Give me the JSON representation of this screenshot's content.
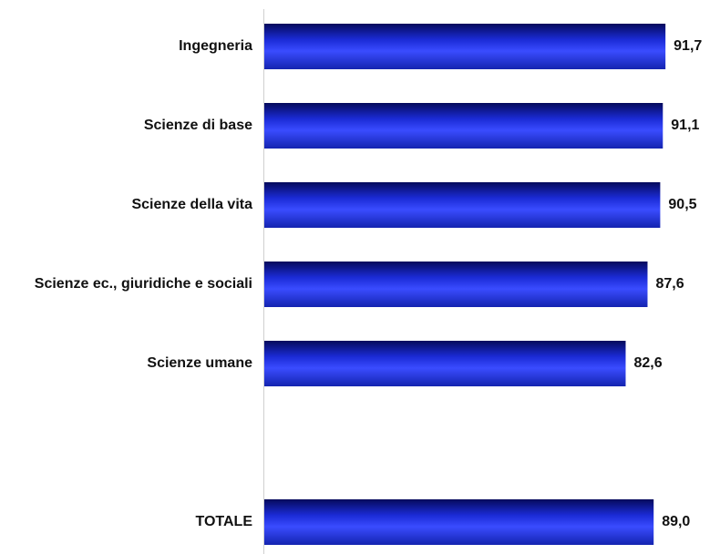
{
  "chart_data": {
    "type": "bar",
    "orientation": "horizontal",
    "categories": [
      "Ingegneria",
      "Scienze di base",
      "Scienze della vita",
      "Scienze ec., giuridiche e sociali",
      "Scienze umane",
      "",
      "TOTALE"
    ],
    "values": [
      91.7,
      91.1,
      90.5,
      87.6,
      82.6,
      null,
      89.0
    ],
    "value_labels": [
      "91,7",
      "91,1",
      "90,5",
      "87,6",
      "82,6",
      "",
      "89,0"
    ],
    "title": "",
    "xlabel": "",
    "ylabel": "",
    "grid": false,
    "legend": "none",
    "colors": {
      "bar_dark": "#050a5c",
      "bar_mid": "#1b2bd6",
      "bar_light": "#3a4cff",
      "axis": "#cfcfcf"
    }
  }
}
